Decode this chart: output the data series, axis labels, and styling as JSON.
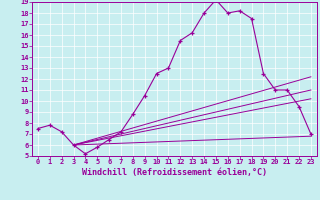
{
  "xlabel": "Windchill (Refroidissement éolien,°C)",
  "xlim": [
    -0.5,
    23.5
  ],
  "ylim": [
    5,
    19
  ],
  "xticks": [
    0,
    1,
    2,
    3,
    4,
    5,
    6,
    7,
    8,
    9,
    10,
    11,
    12,
    13,
    14,
    15,
    16,
    17,
    18,
    19,
    20,
    21,
    22,
    23
  ],
  "yticks": [
    5,
    6,
    7,
    8,
    9,
    10,
    11,
    12,
    13,
    14,
    15,
    16,
    17,
    18,
    19
  ],
  "bg_color": "#c8eef0",
  "line_color": "#990099",
  "line1_x": [
    0,
    1,
    2,
    3,
    4,
    5,
    6,
    7,
    8,
    9,
    10,
    11,
    12,
    13,
    14,
    15,
    16,
    17,
    18,
    19,
    20,
    21,
    22,
    23
  ],
  "line1_y": [
    7.5,
    7.8,
    7.2,
    6.0,
    5.2,
    5.8,
    6.5,
    7.2,
    8.8,
    10.5,
    12.5,
    13.0,
    15.5,
    16.2,
    18.0,
    19.2,
    18.0,
    18.2,
    17.5,
    12.5,
    11.0,
    11.0,
    9.5,
    7.0
  ],
  "line2_x": [
    3,
    23
  ],
  "line2_y": [
    6.0,
    12.2
  ],
  "line3_x": [
    3,
    23
  ],
  "line3_y": [
    6.0,
    11.0
  ],
  "line4_x": [
    3,
    23
  ],
  "line4_y": [
    6.0,
    10.2
  ],
  "line5_x": [
    3,
    23
  ],
  "line5_y": [
    6.0,
    6.8
  ]
}
